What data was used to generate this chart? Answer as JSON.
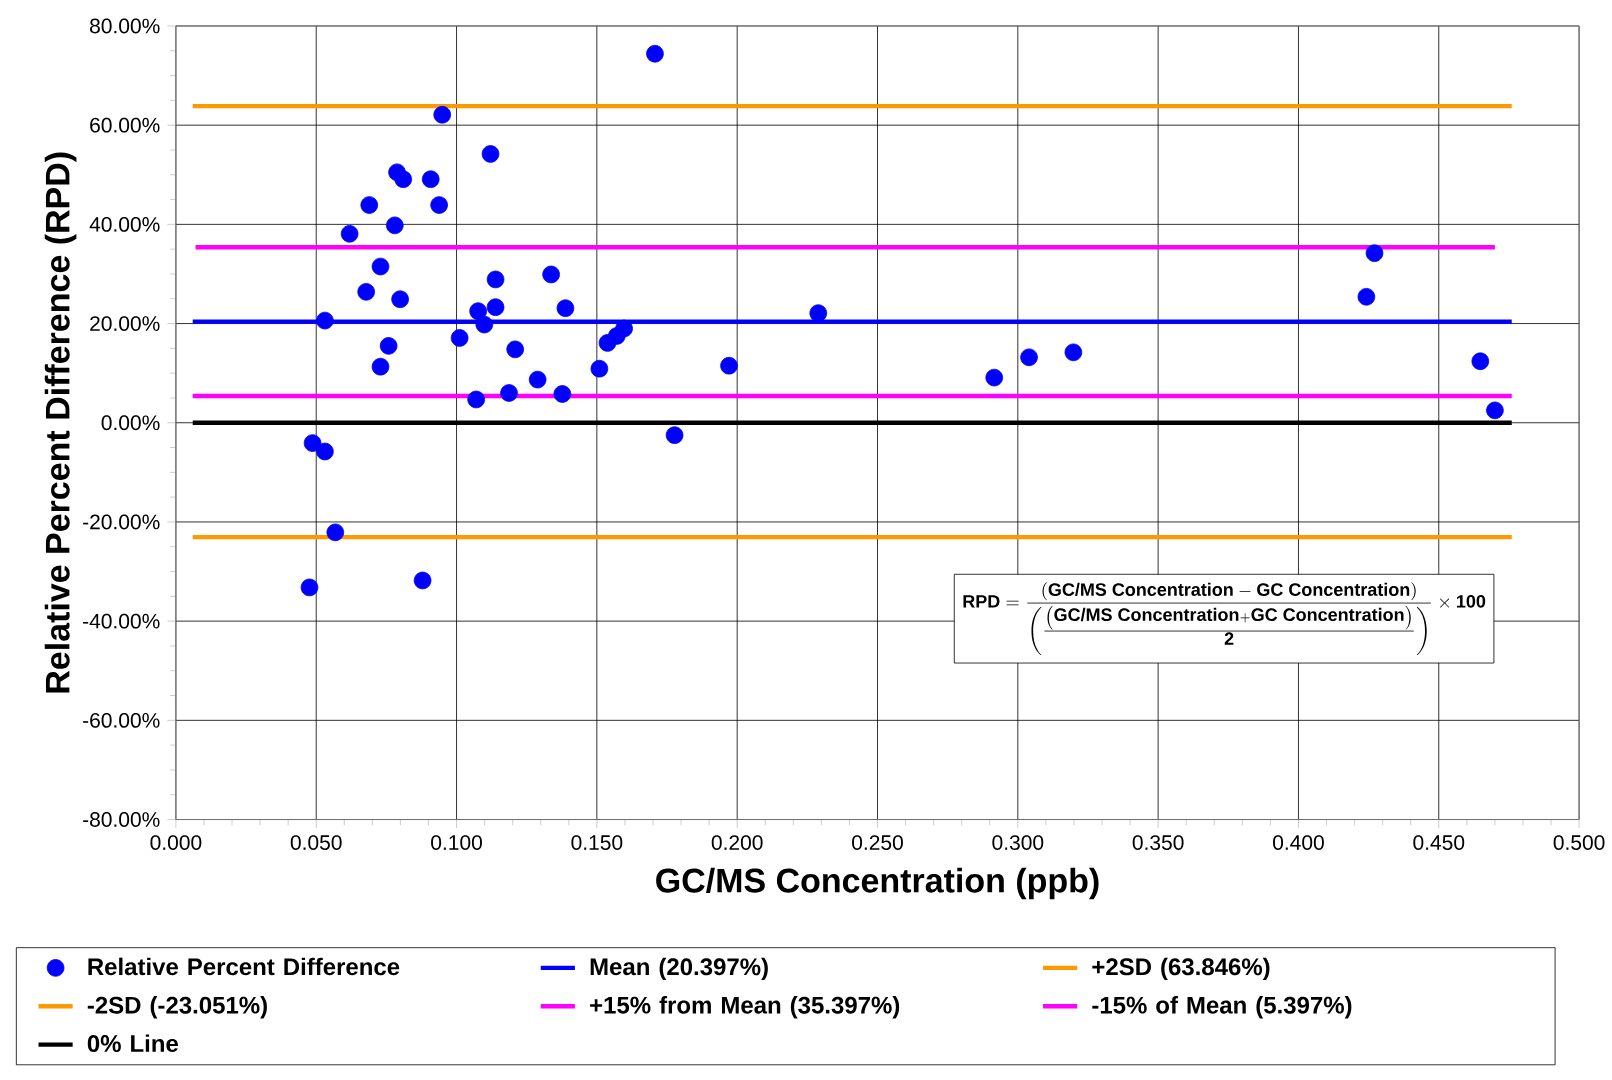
{
  "chart_data": {
    "type": "scatter",
    "xlabel": "GC/MS Concentration (ppb)",
    "ylabel": "Relative Percent Difference (RPD)",
    "xlim": [
      0,
      0.5
    ],
    "ylim": [
      -80,
      80
    ],
    "xticks": [
      {
        "value": 0,
        "label": "0.000"
      },
      {
        "value": 0.05,
        "label": "0.050"
      },
      {
        "value": 0.1,
        "label": "0.100"
      },
      {
        "value": 0.15,
        "label": "0.150"
      },
      {
        "value": 0.2,
        "label": "0.200"
      },
      {
        "value": 0.25,
        "label": "0.250"
      },
      {
        "value": 0.3,
        "label": "0.300"
      },
      {
        "value": 0.35,
        "label": "0.350"
      },
      {
        "value": 0.4,
        "label": "0.400"
      },
      {
        "value": 0.45,
        "label": "0.450"
      },
      {
        "value": 0.5,
        "label": "0.500"
      }
    ],
    "yticks": [
      {
        "value": -80,
        "label": "-80.00%"
      },
      {
        "value": -60,
        "label": "-60.00%"
      },
      {
        "value": -40,
        "label": "-40.00%"
      },
      {
        "value": -20,
        "label": "-20.00%"
      },
      {
        "value": 0,
        "label": "0.00%"
      },
      {
        "value": 20,
        "label": "20.00%"
      },
      {
        "value": 40,
        "label": "40.00%"
      },
      {
        "value": 60,
        "label": "60.00%"
      },
      {
        "value": 80,
        "label": "80.00%"
      }
    ],
    "grid": true,
    "legend": "bottom",
    "series": [
      {
        "name": "Relative Percent Difference",
        "marker": "circle",
        "color": "#0000ff",
        "x": [
          0.1707,
          0.0949,
          0.1121,
          0.0788,
          0.081,
          0.0908,
          0.0938,
          0.0689,
          0.078,
          0.0619,
          0.1337,
          0.0729,
          0.1139,
          0.0678,
          0.0799,
          0.1139,
          0.1388,
          0.1077,
          0.0531,
          0.1099,
          0.1597,
          0.1571,
          0.1538,
          0.1011,
          0.0758,
          0.1209,
          0.0729,
          0.1509,
          0.1289,
          0.1187,
          0.1377,
          0.107,
          0.0487,
          0.0531,
          0.0568,
          0.0476,
          0.0879,
          0.1777,
          0.1971,
          0.2289,
          0.2916,
          0.304,
          0.3198,
          0.4242,
          0.4271,
          0.4648,
          0.47
        ],
        "values": [
          74.4,
          62.1,
          54.2,
          50.5,
          49.1,
          49.1,
          43.9,
          43.9,
          39.8,
          38.1,
          29.9,
          31.5,
          28.9,
          26.4,
          24.9,
          23.3,
          23.1,
          22.5,
          20.6,
          19.8,
          19.0,
          17.5,
          16.1,
          17.1,
          15.5,
          14.8,
          11.3,
          10.9,
          8.7,
          6.0,
          5.8,
          4.7,
          -4.1,
          -5.8,
          -22.1,
          -33.2,
          -31.8,
          -2.5,
          11.5,
          22.1,
          9.1,
          13.2,
          14.2,
          25.4,
          34.2,
          12.4,
          2.5
        ]
      },
      {
        "name": "Mean (20.397%)",
        "type": "line",
        "marker": "none",
        "color": "#0000ff",
        "x": [
          0.006,
          0.476
        ],
        "values": [
          20.397,
          20.397
        ]
      },
      {
        "name": "+2SD (63.846%)",
        "type": "line",
        "marker": "none",
        "color": "#ff9900",
        "x": [
          0.006,
          0.476
        ],
        "values": [
          63.846,
          63.846
        ]
      },
      {
        "name": "-2SD (-23.051%)",
        "type": "line",
        "marker": "none",
        "color": "#ff9900",
        "x": [
          0.006,
          0.476
        ],
        "values": [
          -23.051,
          -23.051
        ]
      },
      {
        "name": "+15% from Mean (35.397%)",
        "type": "line",
        "marker": "none",
        "color": "#ff00ff",
        "x": [
          0.007,
          0.47
        ],
        "values": [
          35.397,
          35.397
        ]
      },
      {
        "name": "-15% of Mean (5.397%)",
        "type": "line",
        "marker": "none",
        "color": "#ff00ff",
        "x": [
          0.006,
          0.476
        ],
        "values": [
          5.397,
          5.397
        ]
      },
      {
        "name": "0% Line",
        "type": "line",
        "marker": "none",
        "color": "#000000",
        "x": [
          0.006,
          0.476
        ],
        "values": [
          0,
          0
        ]
      }
    ],
    "annotations": [
      "\\textbf{RPD} = \\frac{\\left(\\textbf{GC/MS Concentration} - \\textbf{GC Concentration}\\right)}{\\left(\\frac{\\left(\\textbf{GC/MS Concentration} + \\textbf{GC Concentration}\\right)}{\\textbf{2}}\\right)} \\times \\textbf{100}"
    ]
  }
}
